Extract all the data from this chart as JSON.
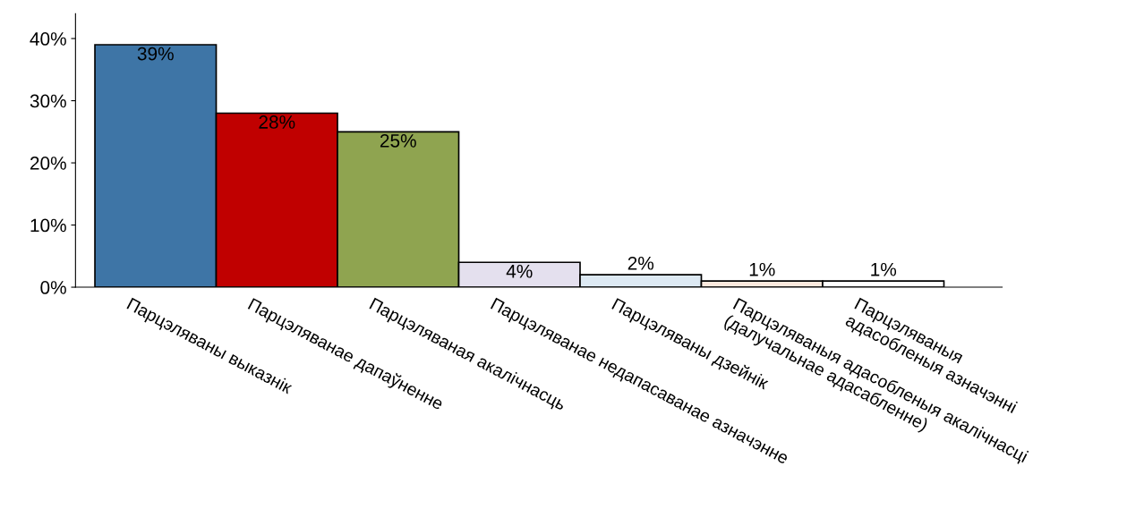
{
  "chart_data": {
    "type": "bar",
    "categories": [
      "Парцэляваны выказнік",
      "Парцэляванае дапаўненне",
      "Парцэляваная акалічнасць",
      "Парцэляванае недапасаванае азначэнне",
      "Парцэляваны дзейнік",
      "Парцэляваныя адасобленыя акалічнасці\n(далучальнае адасабленне)",
      "Парцэляваныя\nадасобленыя азначэнні"
    ],
    "values": [
      39,
      28,
      25,
      4,
      2,
      1,
      1
    ],
    "colors": [
      "#3e75a6",
      "#c00000",
      "#8fa450",
      "#e4e0ee",
      "#dde9f3",
      "#fbe9de",
      "#ffffff"
    ],
    "ylim": [
      0,
      44
    ],
    "yticks": [
      {
        "value": 0,
        "label": "0%"
      },
      {
        "value": 10,
        "label": "10%"
      },
      {
        "value": 20,
        "label": "20%"
      },
      {
        "value": 30,
        "label": "30%"
      },
      {
        "value": 40,
        "label": "40%"
      }
    ],
    "value_labels": [
      "39%",
      "28%",
      "25%",
      "4%",
      "2%",
      "1%",
      "1%"
    ],
    "grid": false,
    "legend": false
  }
}
